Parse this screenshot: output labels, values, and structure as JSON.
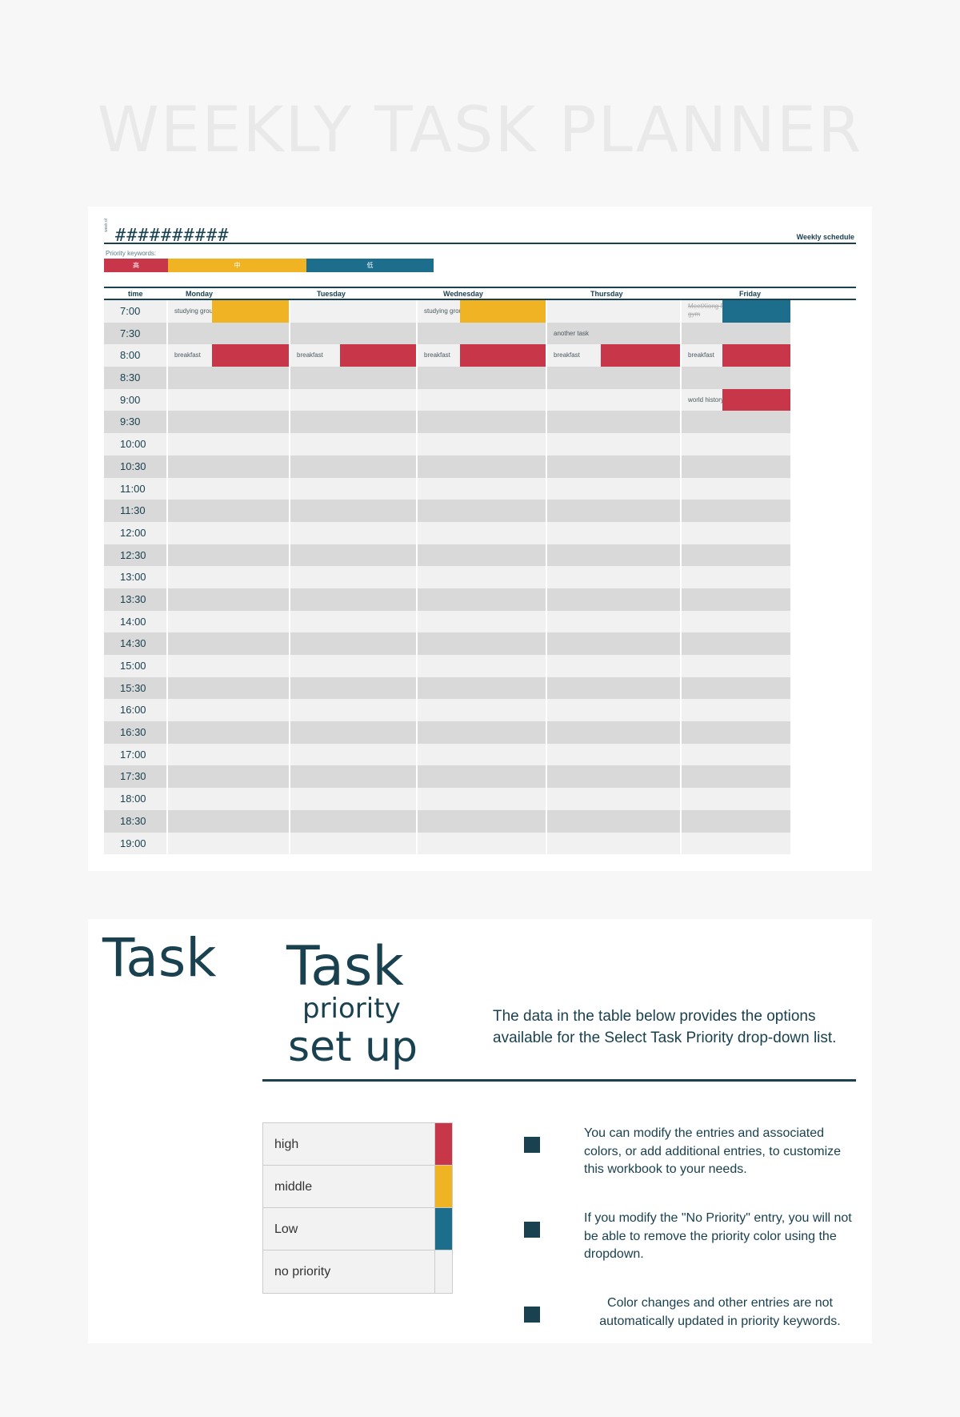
{
  "title": "WEEKLY TASK PLANNER",
  "schedule": {
    "week_label": "week of",
    "date_display": "##########",
    "weekly_schedule_label": "Weekly schedule",
    "priority_keywords_label": "Priority keywords:",
    "priority_keywords": [
      {
        "label": "高",
        "color": "#c8364a"
      },
      {
        "label": "中",
        "color": "#f0b324"
      },
      {
        "label": "低",
        "color": "#1c6e8c"
      }
    ],
    "headers": [
      "time",
      "Monday",
      "Tuesday",
      "Wednesday",
      "Thursday",
      "Friday"
    ],
    "times": [
      "7:00",
      "7:30",
      "8:00",
      "8:30",
      "9:00",
      "9:30",
      "10:00",
      "10:30",
      "11:00",
      "11:30",
      "12:00",
      "12:30",
      "13:00",
      "13:30",
      "14:00",
      "14:30",
      "15:00",
      "15:30",
      "16:00",
      "16:30",
      "17:00",
      "17:30",
      "18:00",
      "18:30",
      "19:00"
    ],
    "tasks": [
      {
        "row": 0,
        "day": 0,
        "text": "studying group",
        "priority": "middle"
      },
      {
        "row": 0,
        "day": 2,
        "text": "studying group",
        "priority": "middle"
      },
      {
        "row": 0,
        "day": 4,
        "text": "MeetXiong Fei at the gym",
        "priority": "low",
        "strike": true
      },
      {
        "row": 1,
        "day": 3,
        "text": "another task",
        "priority": ""
      },
      {
        "row": 2,
        "day": 0,
        "text": "breakfast",
        "priority": "high"
      },
      {
        "row": 2,
        "day": 1,
        "text": "breakfast",
        "priority": "high"
      },
      {
        "row": 2,
        "day": 2,
        "text": "breakfast",
        "priority": "high"
      },
      {
        "row": 2,
        "day": 3,
        "text": "breakfast",
        "priority": "high"
      },
      {
        "row": 2,
        "day": 4,
        "text": "breakfast",
        "priority": "high"
      },
      {
        "row": 4,
        "day": 4,
        "text": "world history",
        "priority": "high"
      }
    ]
  },
  "setup": {
    "big_title": "Task",
    "setup_title_1": "Task",
    "setup_title_2": "priority",
    "setup_title_3": "set up",
    "description": "The data in the table below provides the options available for the Select Task Priority drop-down list.",
    "priorities": [
      {
        "key": "high",
        "label": "high",
        "color": "#c8364a"
      },
      {
        "key": "middle",
        "label": "middle",
        "color": "#f0b324"
      },
      {
        "key": "low",
        "label": "Low",
        "color": "#1c6e8c"
      },
      {
        "key": "none",
        "label": "no priority",
        "color": "#f2f2f2"
      }
    ],
    "notes": [
      "You can modify the entries and associated colors, or add additional entries, to customize this workbook to your needs.",
      "If you modify the \"No Priority\" entry, you will not be able to remove the priority color using the dropdown.",
      "Color changes and other entries are not automatically updated in priority keywords."
    ]
  }
}
